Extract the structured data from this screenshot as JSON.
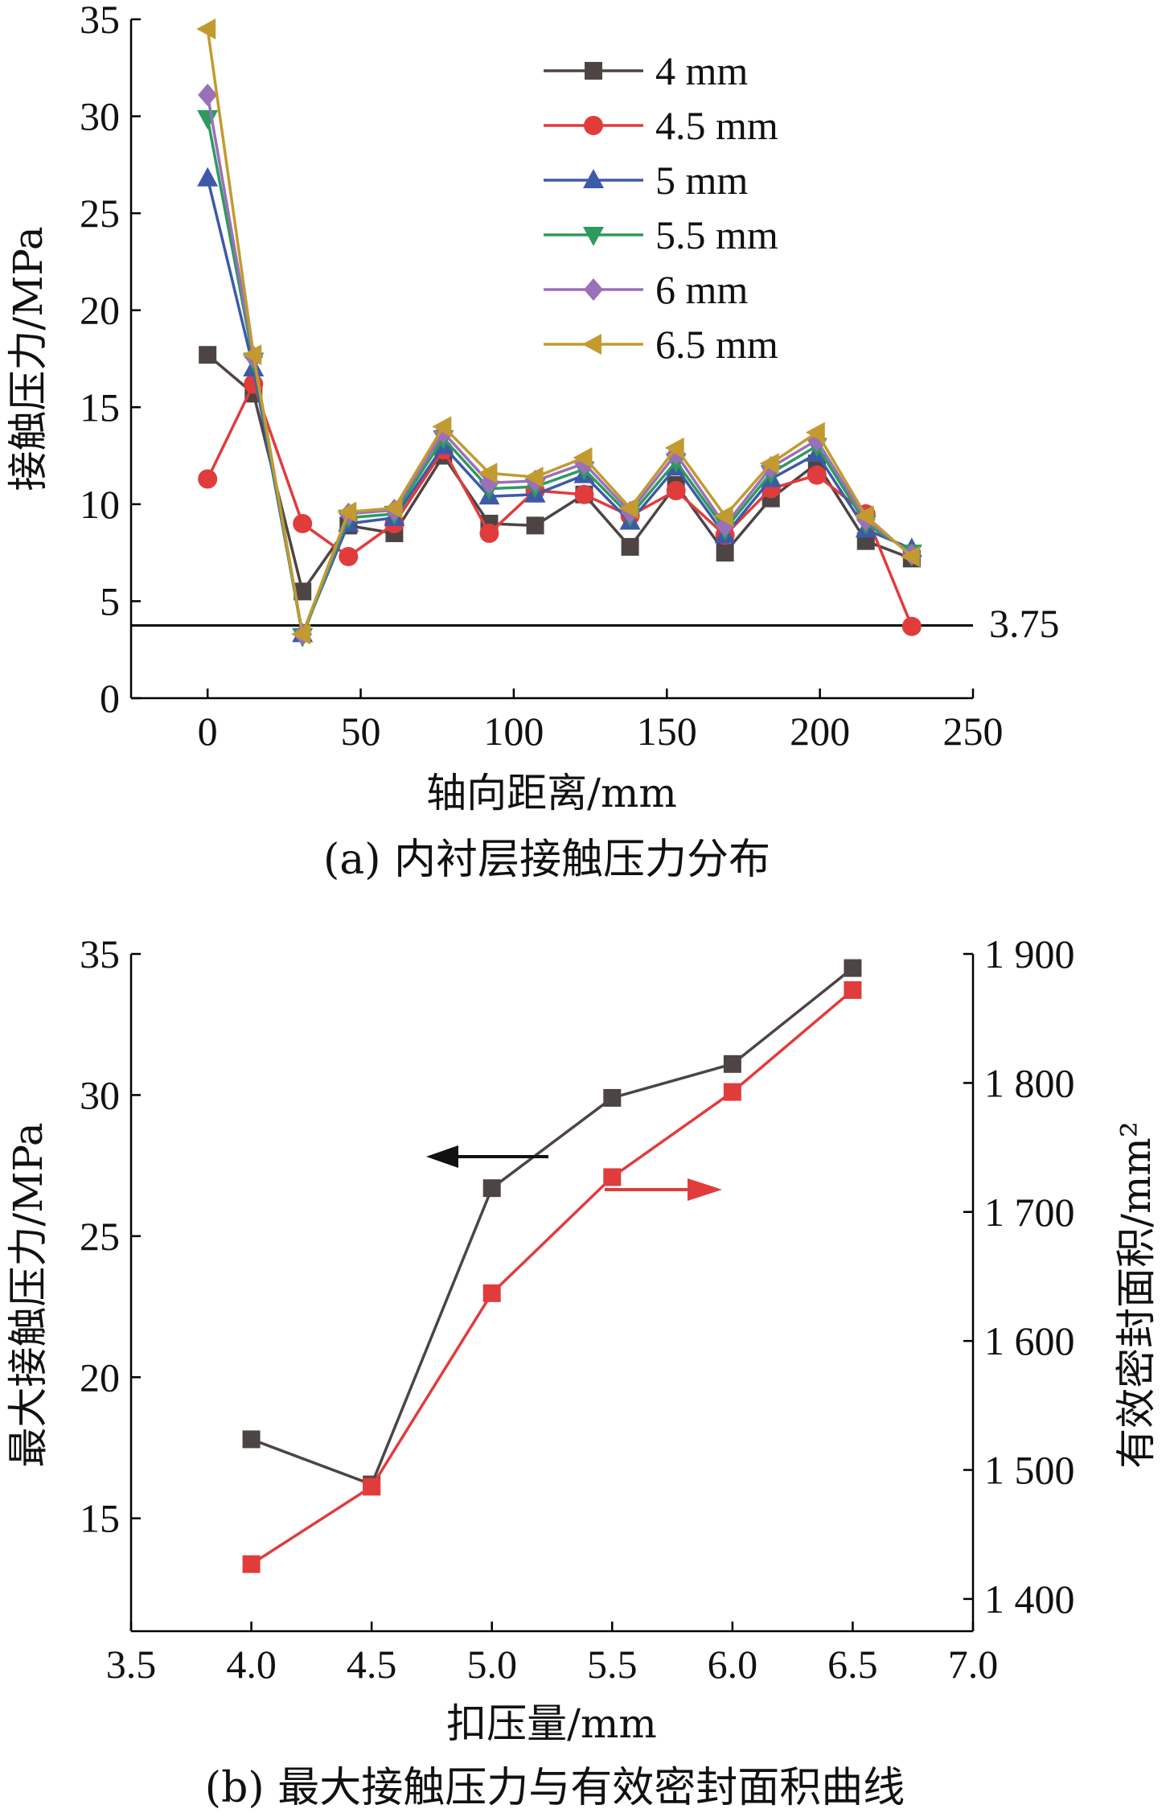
{
  "chart_data": [
    {
      "type": "line",
      "caption": "(a) 内衬层接触压力分布",
      "xlabel": "轴向距离/mm",
      "ylabel": "接触压力/MPa",
      "xlim": [
        -25,
        250
      ],
      "ylim": [
        0,
        35
      ],
      "xticks": [
        "0",
        "50",
        "100",
        "150",
        "200",
        "250"
      ],
      "yticks": [
        "0",
        "5",
        "10",
        "15",
        "20",
        "25",
        "30",
        "35"
      ],
      "x": [
        0,
        15,
        31,
        46,
        61,
        77,
        92,
        107,
        123,
        138,
        153,
        169,
        184,
        199,
        215,
        230
      ],
      "series": [
        {
          "name": "4 mm",
          "color": "#4d4444",
          "marker": "square",
          "values": [
            17.7,
            15.7,
            5.5,
            8.9,
            8.5,
            12.5,
            9.0,
            8.9,
            10.5,
            7.8,
            11.0,
            7.5,
            10.3,
            12.1,
            8.1,
            7.2
          ]
        },
        {
          "name": "4.5 mm",
          "color": "#e03c3c",
          "marker": "circle",
          "values": [
            11.3,
            16.2,
            9.0,
            7.3,
            9.0,
            12.8,
            8.5,
            10.7,
            10.5,
            9.4,
            10.7,
            8.4,
            10.8,
            11.5,
            9.5,
            3.7
          ]
        },
        {
          "name": "5 mm",
          "color": "#3d5aa8",
          "marker": "triangle-up",
          "values": [
            26.8,
            17.0,
            3.3,
            9.0,
            9.3,
            13.0,
            10.4,
            10.5,
            11.5,
            9.1,
            11.9,
            8.4,
            11.3,
            12.6,
            8.7,
            7.7
          ]
        },
        {
          "name": "5.5 mm",
          "color": "#2e9a5e",
          "marker": "triangle-down",
          "values": [
            29.9,
            17.4,
            3.2,
            9.3,
            9.5,
            13.4,
            10.8,
            10.9,
            11.8,
            9.4,
            12.2,
            8.7,
            11.6,
            13.0,
            9.0,
            7.5
          ]
        },
        {
          "name": "6 mm",
          "color": "#9a70b8",
          "marker": "diamond",
          "values": [
            31.1,
            17.6,
            3.3,
            9.5,
            9.7,
            13.7,
            11.1,
            11.2,
            12.1,
            9.6,
            12.6,
            8.9,
            11.9,
            13.3,
            9.2,
            7.4
          ]
        },
        {
          "name": "6.5 mm",
          "color": "#c29a30",
          "marker": "triangle-left",
          "values": [
            34.5,
            17.7,
            3.3,
            9.6,
            9.8,
            14.0,
            11.6,
            11.4,
            12.4,
            9.8,
            12.9,
            9.4,
            12.1,
            13.7,
            9.4,
            7.3
          ]
        }
      ],
      "reference_line": {
        "value": 3.75,
        "label": "3.75"
      },
      "legend_position": "top-right"
    },
    {
      "type": "line",
      "caption": "(b) 最大接触压力与有效密封面积曲线",
      "xlabel": "扣压量/mm",
      "ylabel_left": "最大接触压力/MPa",
      "ylabel_right": "有效密封面积/mm²",
      "xlim": [
        3.5,
        7.0
      ],
      "ylim_left": [
        11,
        35
      ],
      "ylim_right": [
        1375,
        1900
      ],
      "xticks": [
        "3.5",
        "4.0",
        "4.5",
        "5.0",
        "5.5",
        "6.0",
        "6.5",
        "7.0"
      ],
      "yticks_left": [
        "15",
        "20",
        "25",
        "30",
        "35"
      ],
      "yticks_right": [
        "1 400",
        "1 500",
        "1 600",
        "1 700",
        "1 800",
        "1 900"
      ],
      "x": [
        4.0,
        4.5,
        5.0,
        5.5,
        6.0,
        6.5
      ],
      "series": [
        {
          "axis": "left",
          "color": "#4d4444",
          "marker": "square",
          "values": [
            17.8,
            16.2,
            26.7,
            29.9,
            31.1,
            34.5
          ]
        },
        {
          "axis": "right",
          "color": "#e03c3c",
          "marker": "square",
          "values": [
            1427,
            1487,
            1637,
            1727,
            1793,
            1872
          ]
        }
      ]
    }
  ]
}
